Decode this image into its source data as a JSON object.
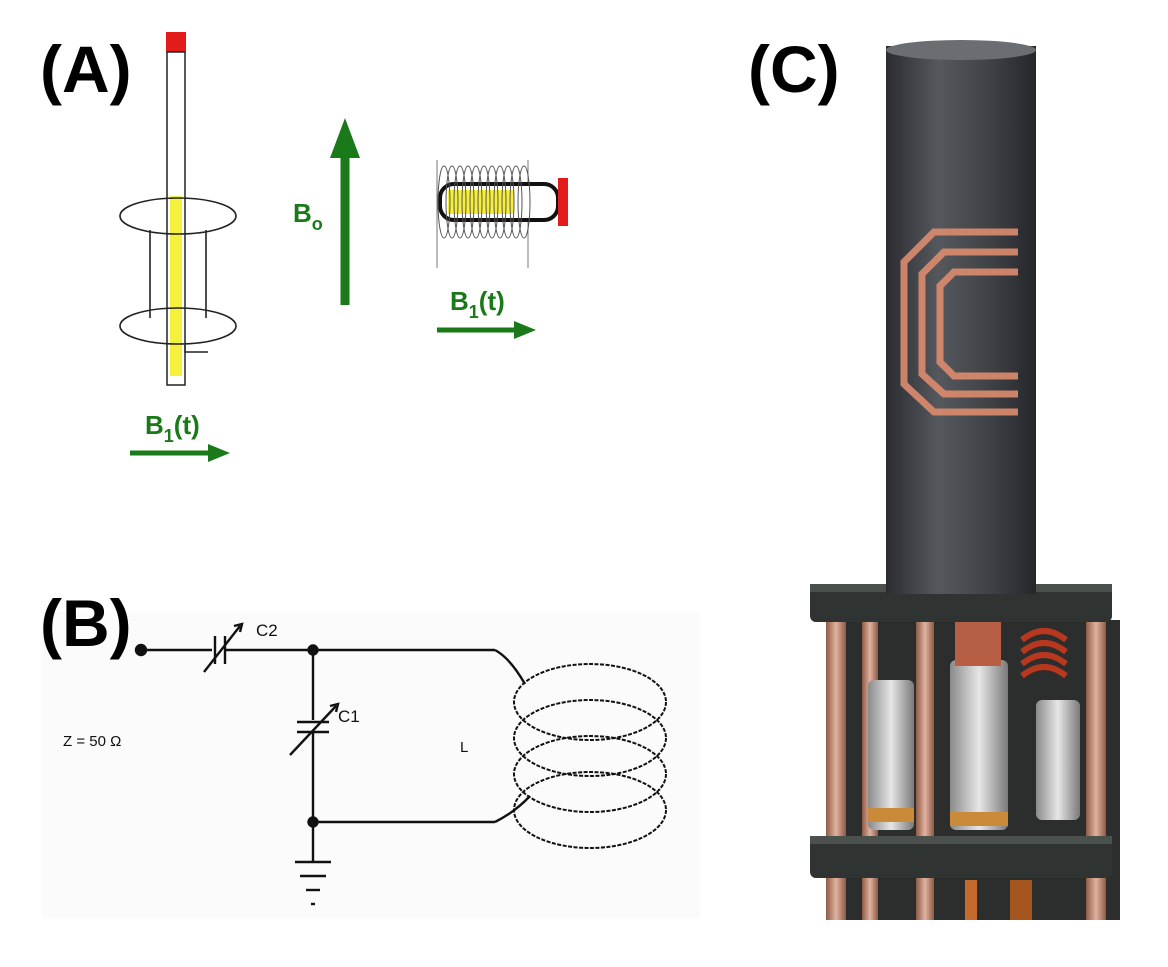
{
  "panels": {
    "a": {
      "label": "(A)",
      "b0": {
        "main": "B",
        "sub": "o"
      },
      "b1_left": {
        "main": "B",
        "sub": "1",
        "suffix": "(t)"
      },
      "b1_right": {
        "main": "B",
        "sub": "1",
        "suffix": "(t)"
      }
    },
    "b": {
      "label": "(B)",
      "impedance": "Z = 50 Ω",
      "c2": "C2",
      "c1": "C1",
      "inductor": "L"
    },
    "c": {
      "label": "(C)"
    }
  },
  "colors": {
    "arrow_green": "#1a7a1a",
    "sample_yellow": "#f5f03c",
    "cap_red": "#e21b1b",
    "copper": "#d98a6e",
    "tube_dark": "#3f4246",
    "ring_dark": "#2f3331"
  }
}
